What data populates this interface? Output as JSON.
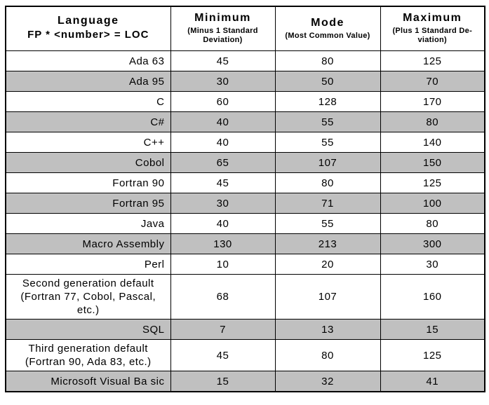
{
  "colors": {
    "shaded_row": "#c0c0c0",
    "border": "#000000",
    "background": "#ffffff",
    "text": "#000000"
  },
  "table": {
    "header": {
      "language_title": "Language",
      "language_subtitle": "FP * <number> = LOC",
      "columns": [
        {
          "id": "minimum",
          "title": "Minimum",
          "subtitle": "(Minus 1 Standard\nDeviation)"
        },
        {
          "id": "mode",
          "title": "Mode",
          "subtitle": "(Most Common Value)"
        },
        {
          "id": "maximum",
          "title": "Maximum",
          "subtitle": "(Plus 1 Standard De-\nviation)"
        }
      ]
    },
    "rows": [
      {
        "language": "Ada 63",
        "min": "45",
        "mode": "80",
        "max": "125",
        "shaded": false,
        "center": false
      },
      {
        "language": "Ada 95",
        "min": "30",
        "mode": "50",
        "max": "70",
        "shaded": true,
        "center": false
      },
      {
        "language": "C",
        "min": "60",
        "mode": "128",
        "max": "170",
        "shaded": false,
        "center": false
      },
      {
        "language": "C#",
        "min": "40",
        "mode": "55",
        "max": "80",
        "shaded": true,
        "center": false
      },
      {
        "language": "C++",
        "min": "40",
        "mode": "55",
        "max": "140",
        "shaded": false,
        "center": false
      },
      {
        "language": "Cobol",
        "min": "65",
        "mode": "107",
        "max": "150",
        "shaded": true,
        "center": false
      },
      {
        "language": "Fortran 90",
        "min": "45",
        "mode": "80",
        "max": "125",
        "shaded": false,
        "center": false
      },
      {
        "language": "Fortran 95",
        "min": "30",
        "mode": "71",
        "max": "100",
        "shaded": true,
        "center": false
      },
      {
        "language": "Java",
        "min": "40",
        "mode": "55",
        "max": "80",
        "shaded": false,
        "center": false
      },
      {
        "language": "Macro Assembly",
        "min": "130",
        "mode": "213",
        "max": "300",
        "shaded": true,
        "center": false
      },
      {
        "language": "Perl",
        "min": "10",
        "mode": "20",
        "max": "30",
        "shaded": false,
        "center": false
      },
      {
        "language": "Second generation default\n(Fortran 77, Cobol, Pascal,\netc.)",
        "min": "68",
        "mode": "107",
        "max": "160",
        "shaded": false,
        "center": true
      },
      {
        "language": "SQL",
        "min": "7",
        "mode": "13",
        "max": "15",
        "shaded": true,
        "center": false
      },
      {
        "language": "Third generation default\n(Fortran 90, Ada 83, etc.)",
        "min": "45",
        "mode": "80",
        "max": "125",
        "shaded": false,
        "center": true
      },
      {
        "language": "Microsoft Visual Ba sic",
        "min": "15",
        "mode": "32",
        "max": "41",
        "shaded": true,
        "center": false
      }
    ]
  },
  "chart_data": {
    "type": "table",
    "title": "",
    "columns": [
      "Language FP * <number> = LOC",
      "Minimum (Minus 1 Standard Deviation)",
      "Mode (Most Common Value)",
      "Maximum (Plus 1 Standard Deviation)"
    ],
    "rows": [
      [
        "Ada 63",
        45,
        80,
        125
      ],
      [
        "Ada 95",
        30,
        50,
        70
      ],
      [
        "C",
        60,
        128,
        170
      ],
      [
        "C#",
        40,
        55,
        80
      ],
      [
        "C++",
        40,
        55,
        140
      ],
      [
        "Cobol",
        65,
        107,
        150
      ],
      [
        "Fortran 90",
        45,
        80,
        125
      ],
      [
        "Fortran 95",
        30,
        71,
        100
      ],
      [
        "Java",
        40,
        55,
        80
      ],
      [
        "Macro Assembly",
        130,
        213,
        300
      ],
      [
        "Perl",
        10,
        20,
        30
      ],
      [
        "Second generation default (Fortran 77, Cobol, Pascal, etc.)",
        68,
        107,
        160
      ],
      [
        "SQL",
        7,
        13,
        15
      ],
      [
        "Third generation default (Fortran 90, Ada 83, etc.)",
        45,
        80,
        125
      ],
      [
        "Microsoft Visual Ba sic",
        15,
        32,
        41
      ]
    ]
  }
}
